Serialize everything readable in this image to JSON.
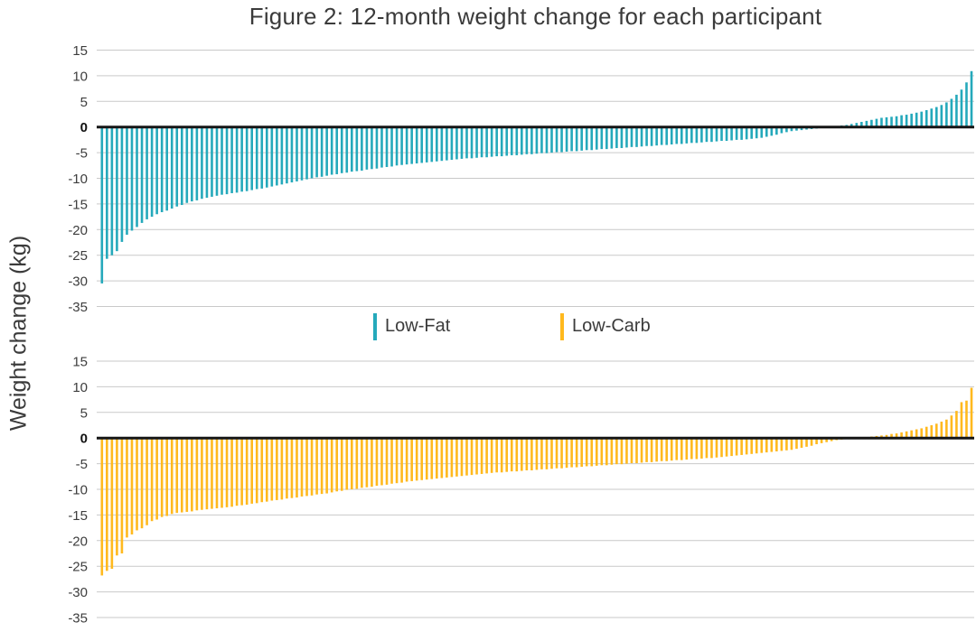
{
  "figure": {
    "title": "Figure 2: 12-month weight change for each participant",
    "y_axis_label": "Weight change (kg)"
  },
  "legend": {
    "items": [
      {
        "label": "Low-Fat",
        "color": "#25A9BB"
      },
      {
        "label": "Low-Carb",
        "color": "#FFB91E"
      }
    ]
  },
  "colors": {
    "gridline": "#C9C9C9",
    "zero_line": "#161616",
    "text": "#3B3B3B"
  },
  "chart_data": [
    {
      "type": "bar",
      "name": "Low-Fat",
      "color": "#25A9BB",
      "ylabel": "Weight change (kg)",
      "ylim": [
        -35,
        15
      ],
      "yticks": [
        15,
        10,
        5,
        0,
        -5,
        -10,
        -15,
        -20,
        -25,
        -30,
        -35
      ],
      "values": [
        -30.5,
        -25.7,
        -25.0,
        -24.2,
        -22.4,
        -21.0,
        -20.2,
        -19.5,
        -18.7,
        -18.0,
        -17.5,
        -17.0,
        -16.6,
        -16.3,
        -15.9,
        -15.5,
        -15.2,
        -14.8,
        -14.5,
        -14.3,
        -14.0,
        -13.8,
        -13.6,
        -13.4,
        -13.2,
        -13.1,
        -12.9,
        -12.8,
        -12.6,
        -12.5,
        -12.3,
        -12.1,
        -12.0,
        -11.8,
        -11.6,
        -11.4,
        -11.2,
        -11.0,
        -10.8,
        -10.6,
        -10.4,
        -10.2,
        -10.0,
        -9.8,
        -9.7,
        -9.5,
        -9.3,
        -9.2,
        -9.0,
        -8.9,
        -8.7,
        -8.6,
        -8.5,
        -8.3,
        -8.2,
        -8.1,
        -7.9,
        -7.8,
        -7.7,
        -7.5,
        -7.4,
        -7.3,
        -7.2,
        -7.1,
        -7.0,
        -6.9,
        -6.8,
        -6.7,
        -6.6,
        -6.5,
        -6.4,
        -6.3,
        -6.2,
        -6.1,
        -6.1,
        -6.0,
        -5.9,
        -5.9,
        -5.8,
        -5.7,
        -5.7,
        -5.6,
        -5.5,
        -5.5,
        -5.4,
        -5.3,
        -5.3,
        -5.2,
        -5.1,
        -5.1,
        -5.0,
        -4.9,
        -4.9,
        -4.8,
        -4.7,
        -4.7,
        -4.6,
        -4.5,
        -4.5,
        -4.4,
        -4.3,
        -4.3,
        -4.2,
        -4.1,
        -4.1,
        -4.0,
        -3.9,
        -3.9,
        -3.8,
        -3.7,
        -3.7,
        -3.6,
        -3.5,
        -3.5,
        -3.4,
        -3.3,
        -3.3,
        -3.2,
        -3.1,
        -3.1,
        -3.0,
        -2.9,
        -2.9,
        -2.8,
        -2.7,
        -2.7,
        -2.6,
        -2.5,
        -2.5,
        -2.4,
        -2.3,
        -2.2,
        -2.1,
        -1.9,
        -1.7,
        -1.5,
        -1.2,
        -1.0,
        -0.8,
        -0.7,
        -0.6,
        -0.5,
        -0.4,
        -0.3,
        -0.2,
        -0.1,
        0.1,
        0.2,
        0.3,
        0.4,
        0.6,
        0.8,
        1.0,
        1.2,
        1.4,
        1.6,
        1.8,
        1.9,
        2.0,
        2.1,
        2.3,
        2.4,
        2.6,
        2.8,
        3.0,
        3.3,
        3.6,
        3.9,
        4.3,
        4.8,
        5.5,
        6.3,
        7.3,
        8.7,
        10.9
      ]
    },
    {
      "type": "bar",
      "name": "Low-Carb",
      "color": "#FFB91E",
      "ylabel": "Weight change (kg)",
      "ylim": [
        -35,
        15
      ],
      "yticks": [
        15,
        10,
        5,
        0,
        -5,
        -10,
        -15,
        -20,
        -25,
        -30,
        -35
      ],
      "values": [
        -26.8,
        -25.9,
        -25.5,
        -22.9,
        -22.5,
        -19.4,
        -18.8,
        -18.0,
        -17.6,
        -17.0,
        -16.2,
        -15.9,
        -15.4,
        -15.2,
        -14.8,
        -14.6,
        -14.5,
        -14.4,
        -14.3,
        -14.1,
        -14.0,
        -13.9,
        -13.8,
        -13.7,
        -13.6,
        -13.5,
        -13.4,
        -13.2,
        -13.1,
        -13.0,
        -12.8,
        -12.7,
        -12.5,
        -12.4,
        -12.2,
        -12.1,
        -12.0,
        -11.8,
        -11.7,
        -11.6,
        -11.4,
        -11.3,
        -11.2,
        -11.0,
        -10.9,
        -10.8,
        -10.6,
        -10.4,
        -10.3,
        -10.1,
        -10.0,
        -9.9,
        -9.7,
        -9.6,
        -9.5,
        -9.3,
        -9.2,
        -9.1,
        -8.9,
        -8.8,
        -8.7,
        -8.5,
        -8.4,
        -8.3,
        -8.2,
        -8.1,
        -8.0,
        -7.9,
        -7.8,
        -7.7,
        -7.6,
        -7.5,
        -7.4,
        -7.3,
        -7.2,
        -7.1,
        -7.0,
        -6.9,
        -6.8,
        -6.7,
        -6.7,
        -6.6,
        -6.5,
        -6.5,
        -6.4,
        -6.3,
        -6.3,
        -6.2,
        -6.1,
        -6.1,
        -6.0,
        -5.9,
        -5.9,
        -5.8,
        -5.7,
        -5.7,
        -5.6,
        -5.5,
        -5.5,
        -5.4,
        -5.3,
        -5.3,
        -5.2,
        -5.1,
        -5.1,
        -5.0,
        -4.9,
        -4.9,
        -4.8,
        -4.7,
        -4.7,
        -4.6,
        -4.5,
        -4.5,
        -4.4,
        -4.3,
        -4.3,
        -4.2,
        -4.1,
        -4.1,
        -4.0,
        -3.9,
        -3.9,
        -3.8,
        -3.7,
        -3.6,
        -3.5,
        -3.4,
        -3.3,
        -3.2,
        -3.1,
        -3.0,
        -2.9,
        -2.8,
        -2.7,
        -2.6,
        -2.5,
        -2.4,
        -2.3,
        -2.1,
        -1.9,
        -1.7,
        -1.5,
        -1.2,
        -1.0,
        -0.8,
        -0.6,
        -0.4,
        -0.3,
        -0.2,
        -0.1,
        -0.1,
        0.1,
        0.2,
        0.3,
        0.4,
        0.5,
        0.6,
        0.8,
        0.9,
        1.1,
        1.3,
        1.5,
        1.7,
        1.9,
        2.2,
        2.5,
        2.8,
        3.2,
        3.6,
        4.4,
        5.3,
        7.0,
        7.3,
        9.8
      ]
    }
  ]
}
